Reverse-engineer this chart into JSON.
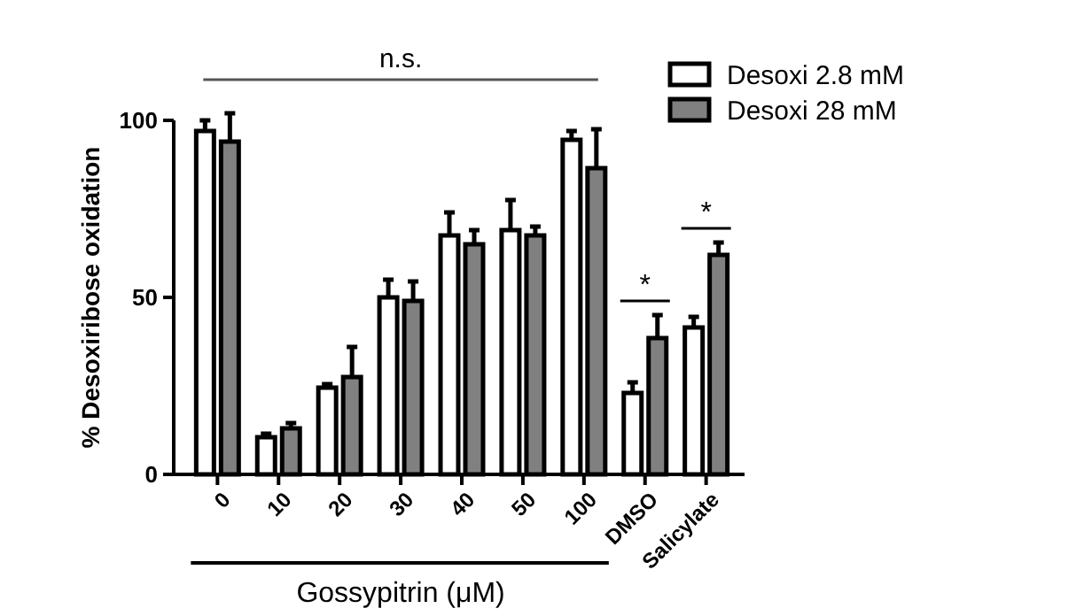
{
  "chart_data": {
    "type": "bar",
    "ylabel": "% Desoxiribose oxidation",
    "xlabel": "Gossypitrin (μM)",
    "categories": [
      "0",
      "10",
      "20",
      "30",
      "40",
      "50",
      "100",
      "DMSO",
      "Salicylate"
    ],
    "series": [
      {
        "name": "Desoxi 2.8 mM",
        "color": "#ffffff",
        "values": [
          97,
          10.5,
          24.5,
          50,
          67.5,
          69,
          94.5,
          23,
          41.5
        ],
        "errors": [
          3,
          1,
          1,
          5,
          6.5,
          8.5,
          2.5,
          3,
          3
        ]
      },
      {
        "name": "Desoxi 28 mM",
        "color": "#808080",
        "values": [
          94,
          13,
          27.5,
          49,
          65,
          67.5,
          86.5,
          38.5,
          62
        ],
        "errors": [
          8,
          1.5,
          8.5,
          5.5,
          4,
          2.5,
          11,
          6.5,
          3.5
        ]
      }
    ],
    "ylim": [
      0,
      105
    ],
    "yticks": [
      0,
      50,
      100
    ],
    "grid": false,
    "legend": "top right",
    "annotations": [
      "n.s.",
      "*",
      "*"
    ]
  }
}
